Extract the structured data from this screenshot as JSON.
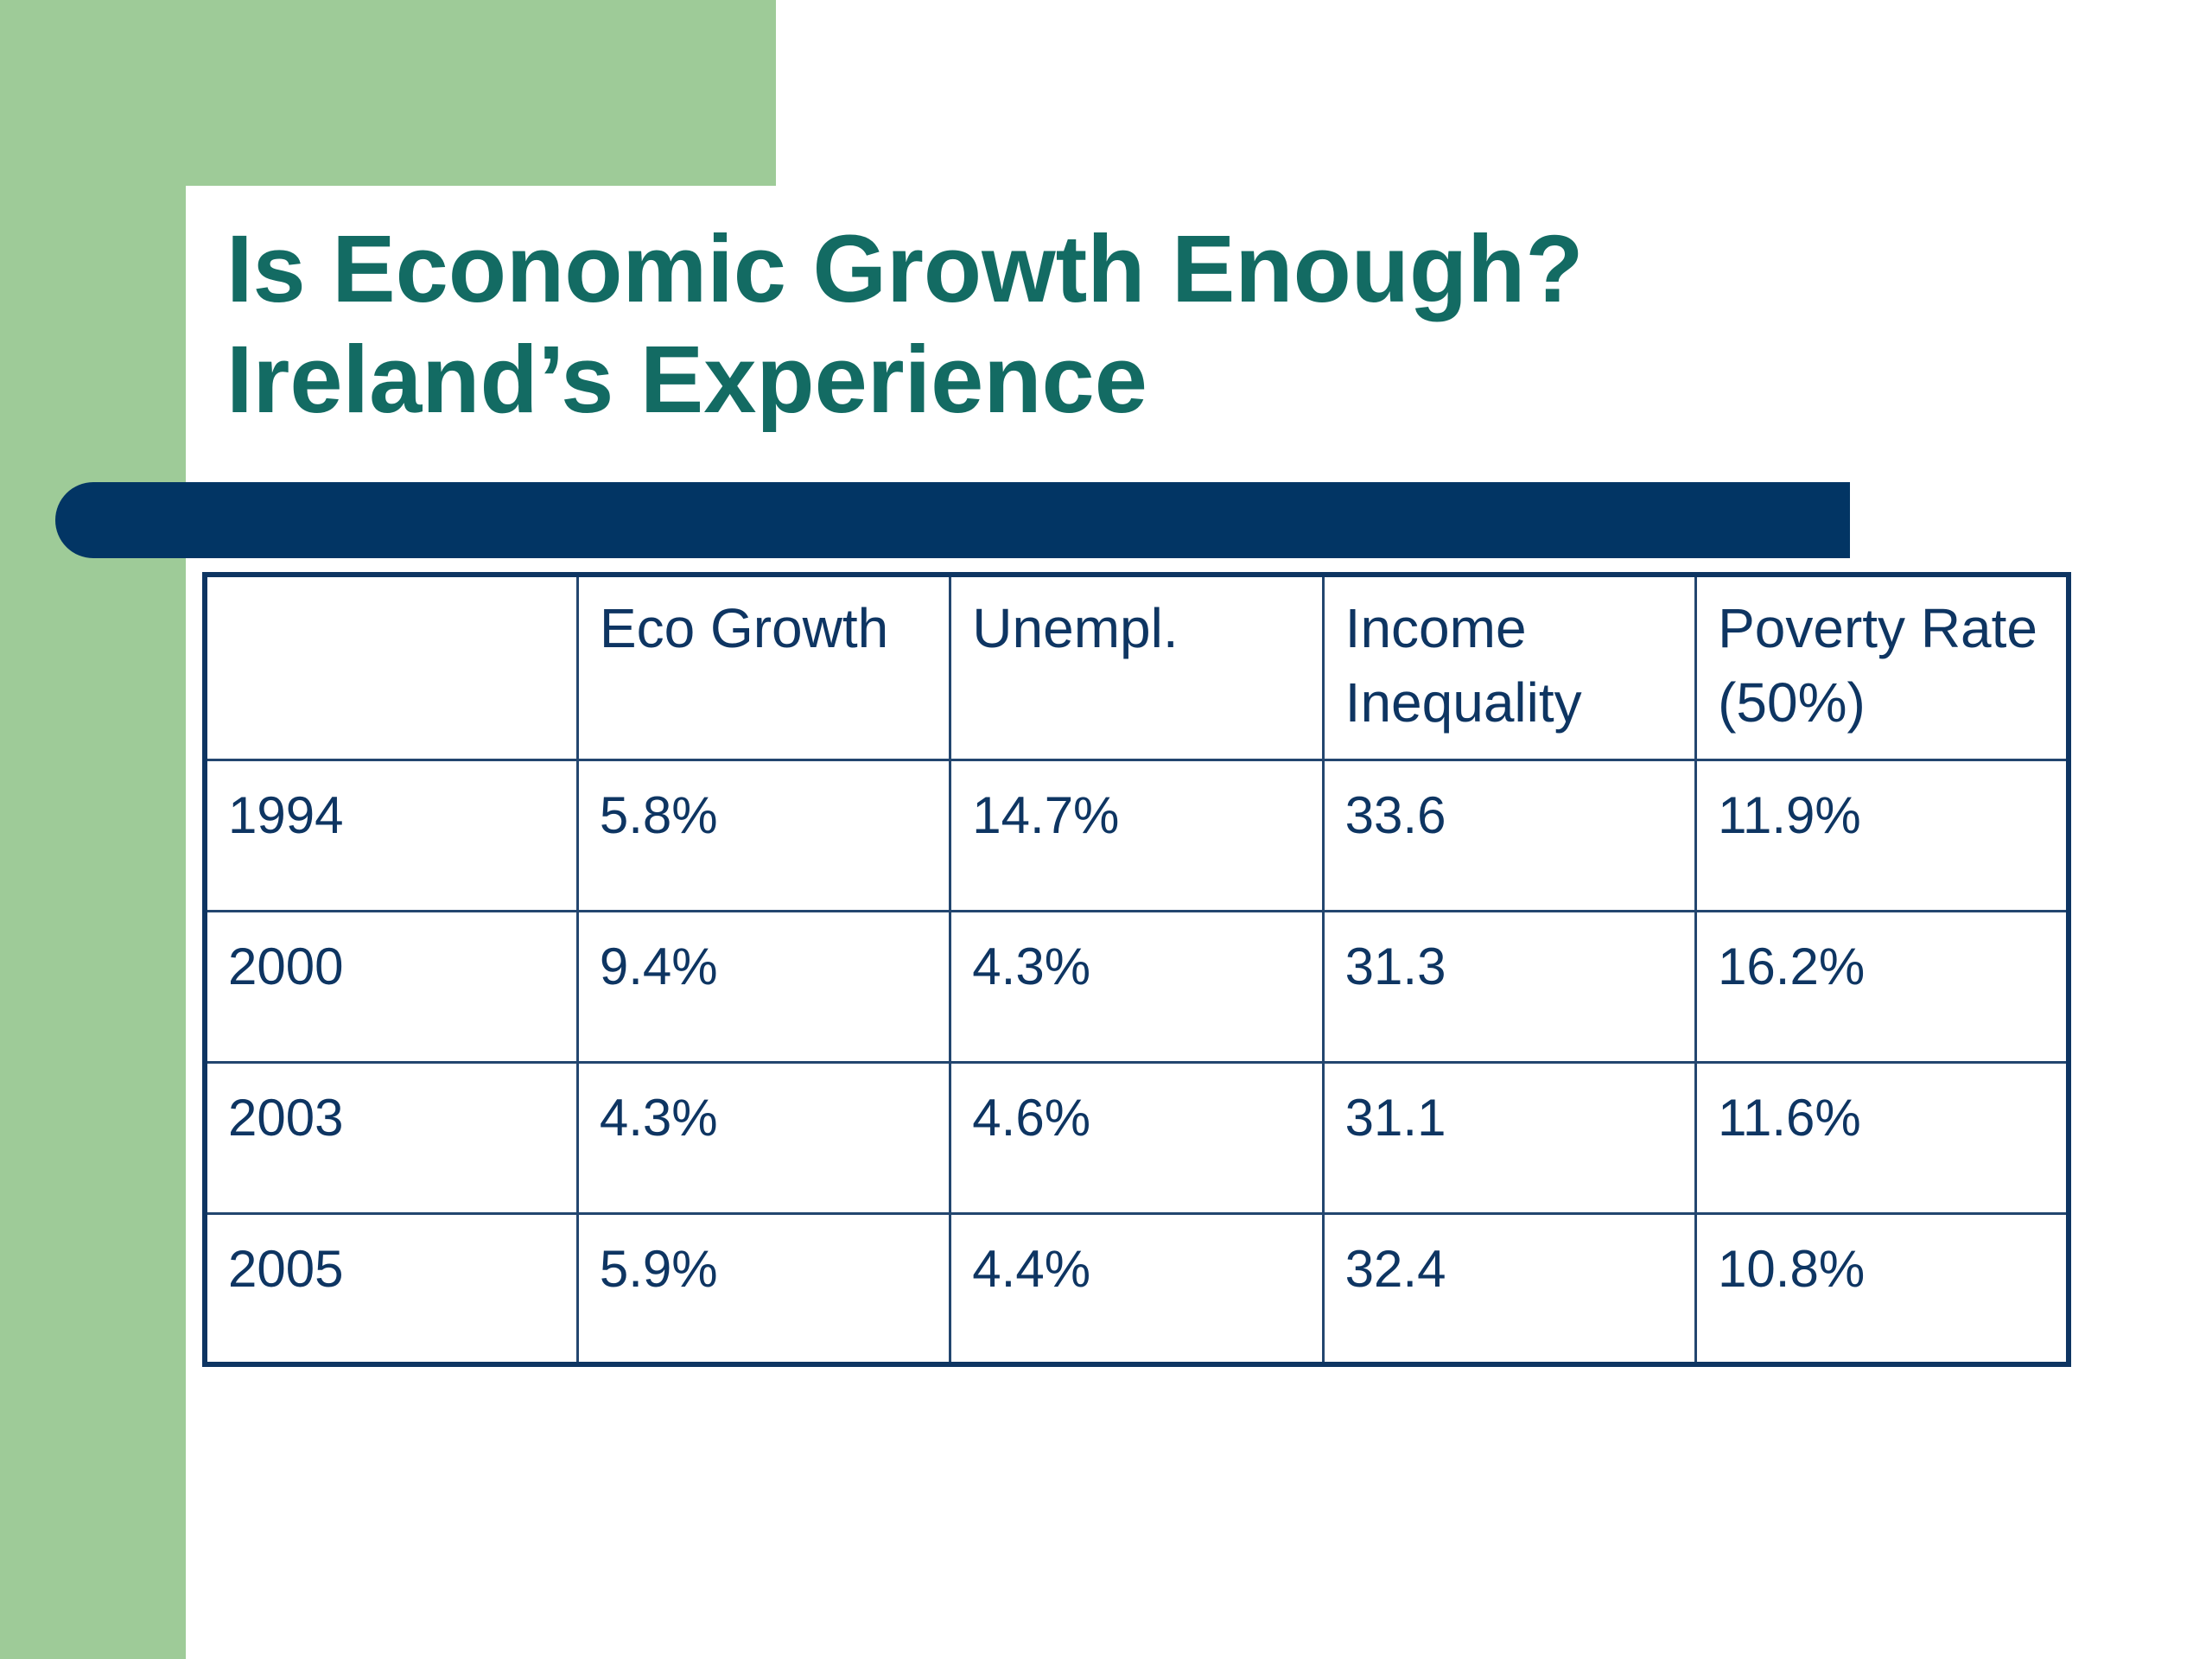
{
  "slide": {
    "title_line1": "Is Economic Growth Enough?",
    "title_line2": "Ireland’s Experience"
  },
  "table": {
    "headers": [
      "",
      "Eco Growth",
      "Unempl.",
      "Income Inequality",
      "Poverty Rate (50%)"
    ],
    "rows": [
      [
        "1994",
        "5.8%",
        "14.7%",
        "33.6",
        "11.9%"
      ],
      [
        "2000",
        "9.4%",
        "4.3%",
        "31.3",
        "16.2%"
      ],
      [
        "2003",
        "4.3%",
        "4.6%",
        "31.1",
        "11.6%"
      ],
      [
        "2005",
        "5.9%",
        "4.4%",
        "32.4",
        "10.8%"
      ]
    ]
  },
  "colors": {
    "accent_green": "#9ecb98",
    "title_teal": "#136b63",
    "navy": "#023564",
    "table_text": "#0e3562"
  }
}
